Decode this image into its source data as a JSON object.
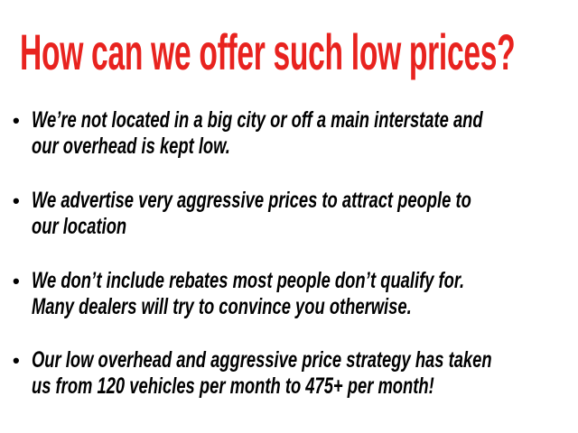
{
  "title": "How can we offer such low prices?",
  "colors": {
    "title": "#e8231f",
    "text": "#000000"
  },
  "bullets": [
    {
      "line1": "We’re not located in a big city or off a main interstate and",
      "line2": "our overhead is kept low."
    },
    {
      "line1": "We advertise very aggressive prices to attract people to",
      "line2": "our location"
    },
    {
      "line1": "We don’t include rebates most people don’t qualify for.",
      "line2": "Many dealers will try to convince you otherwise."
    },
    {
      "line1": "Our low overhead and aggressive price strategy has taken",
      "line2": "us from 120 vehicles per month to 475+ per month!"
    }
  ]
}
